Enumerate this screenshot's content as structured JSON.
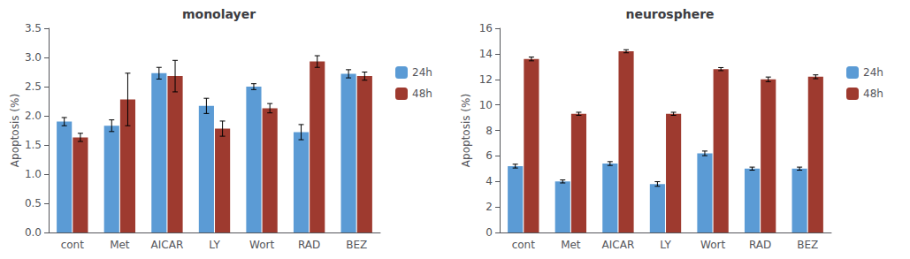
{
  "chart_data": [
    {
      "type": "bar",
      "title": "monolayer",
      "categories": [
        "cont",
        "Met",
        "AICAR",
        "LY",
        "Wort",
        "RAD",
        "BEZ"
      ],
      "series": [
        {
          "name": "24h",
          "color": "#5b9bd5",
          "values": [
            1.9,
            1.83,
            2.73,
            2.17,
            2.5,
            1.72,
            2.72
          ],
          "errors": [
            0.07,
            0.1,
            0.1,
            0.13,
            0.05,
            0.13,
            0.07
          ]
        },
        {
          "name": "48h",
          "color": "#9e3a2f",
          "values": [
            1.63,
            2.28,
            2.68,
            1.78,
            2.13,
            2.93,
            2.68
          ],
          "errors": [
            0.07,
            0.45,
            0.27,
            0.13,
            0.08,
            0.1,
            0.07
          ]
        }
      ],
      "ylabel": "Apoptosis (%)",
      "ylim": [
        0,
        3.5
      ],
      "yticks": [
        {
          "value": 0,
          "label": "0.0"
        },
        0.5,
        {
          "value": 1.0,
          "label": "1.0"
        },
        1.5,
        {
          "value": 2.0,
          "label": "2.0"
        },
        2.5,
        {
          "value": 3.0,
          "label": "3.0"
        },
        3.5
      ],
      "grid": false,
      "legend": "right"
    },
    {
      "type": "bar",
      "title": "neurosphere",
      "categories": [
        "cont",
        "Met",
        "AICAR",
        "LY",
        "Wort",
        "RAD",
        "BEZ"
      ],
      "series": [
        {
          "name": "24h",
          "color": "#5b9bd5",
          "values": [
            5.2,
            4.0,
            5.4,
            3.8,
            6.2,
            5.0,
            5.0
          ],
          "errors": [
            0.15,
            0.12,
            0.15,
            0.18,
            0.18,
            0.12,
            0.12
          ]
        },
        {
          "name": "48h",
          "color": "#9e3a2f",
          "values": [
            13.6,
            9.3,
            14.2,
            9.3,
            12.8,
            12.0,
            12.2
          ],
          "errors": [
            0.15,
            0.12,
            0.12,
            0.12,
            0.12,
            0.18,
            0.15
          ]
        }
      ],
      "ylabel": "Apoptosis (%)",
      "ylim": [
        0,
        16
      ],
      "yticks": [
        0,
        2,
        4,
        6,
        8,
        10,
        12,
        14,
        16
      ],
      "grid": false,
      "legend": "right"
    }
  ]
}
